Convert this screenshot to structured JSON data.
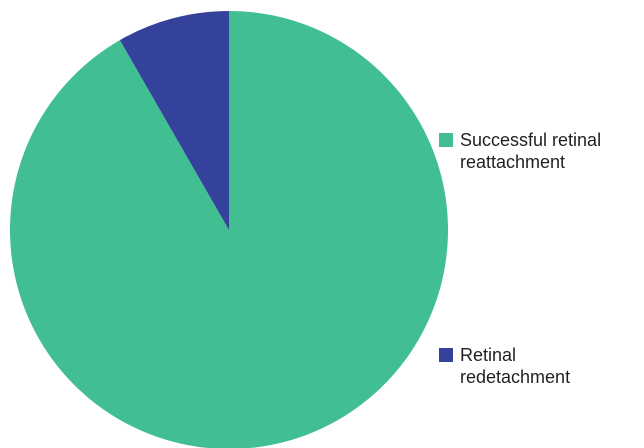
{
  "chart_data": {
    "type": "pie",
    "title": "",
    "legend_position": "right",
    "slices": [
      {
        "label_lines": [
          "Successful retinal",
          "reattachment"
        ],
        "value": 91.7,
        "color": "#42be93"
      },
      {
        "label_lines": [
          "Retinal",
          "redetachment"
        ],
        "value": 8.3,
        "color": "#35429b"
      }
    ]
  }
}
